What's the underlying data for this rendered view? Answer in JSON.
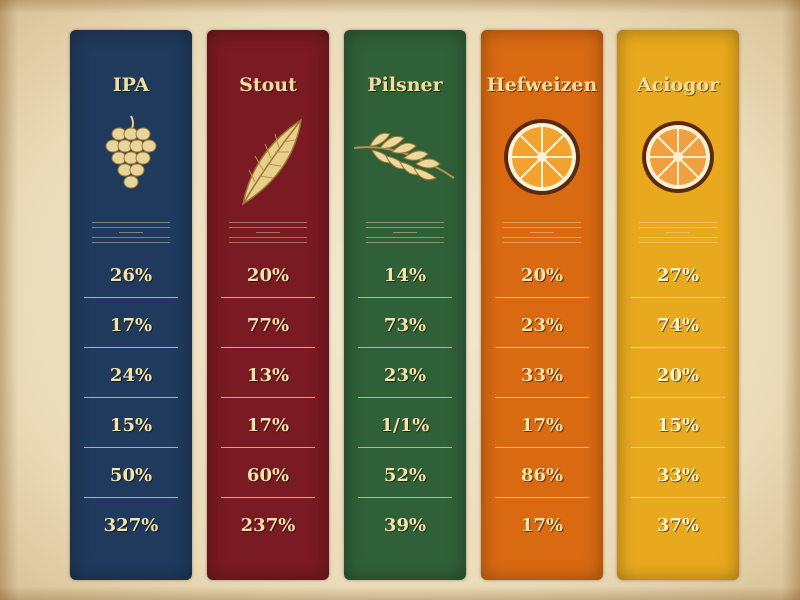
{
  "columns": [
    {
      "name": "IPA",
      "color": "#1f3a5c",
      "icon": "hops-icon",
      "values": [
        "26%",
        "17%",
        "24%",
        "15%",
        "50%",
        "327%"
      ]
    },
    {
      "name": "Stout",
      "color": "#7a1a22",
      "icon": "leaf-icon",
      "values": [
        "20%",
        "77%",
        "13%",
        "17%",
        "60%",
        "237%"
      ]
    },
    {
      "name": "Pilsner",
      "color": "#2f6038",
      "icon": "wheat-icon",
      "values": [
        "14%",
        "73%",
        "23%",
        "1/1%",
        "52%",
        "39%"
      ]
    },
    {
      "name": "Hefweizen",
      "color": "#d96a12",
      "icon": "orange-slice-icon",
      "values": [
        "20%",
        "23%",
        "33%",
        "17%",
        "86%",
        "17%"
      ]
    },
    {
      "name": "Aciogor",
      "color": "#e8a91e",
      "icon": "orange-slice-icon",
      "values": [
        "27%",
        "74%",
        "20%",
        "15%",
        "33%",
        "37%"
      ]
    }
  ]
}
